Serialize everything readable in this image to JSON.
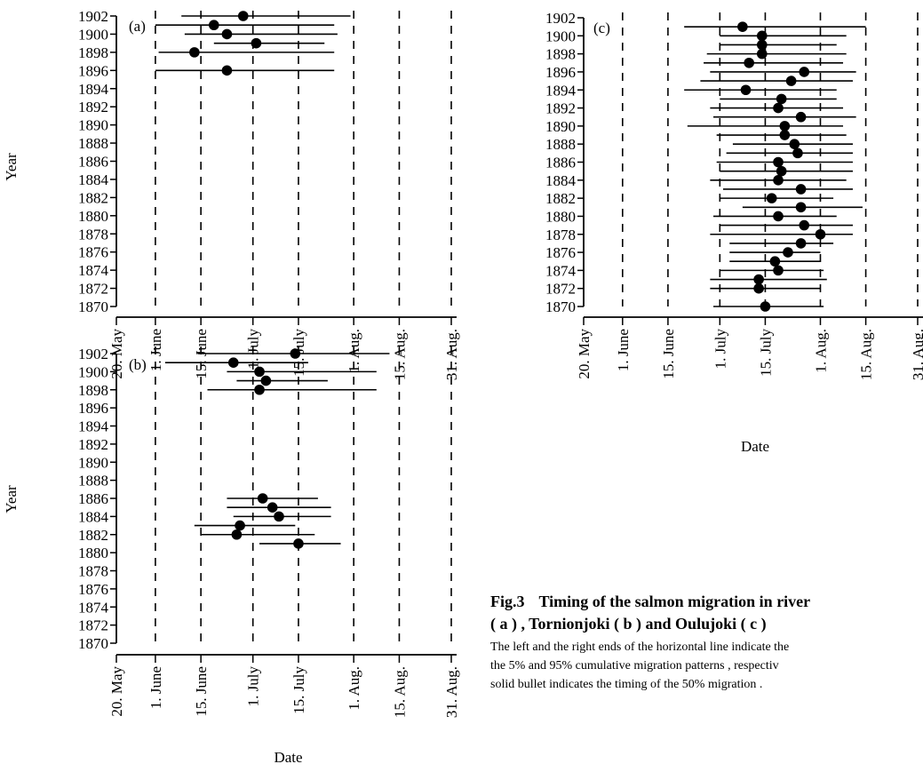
{
  "chart_data": [
    {
      "panel": "(a)",
      "type": "scatter",
      "xlabel": "Date",
      "ylabel": "Year",
      "x_tick_labels": [
        "20. May",
        "1. June",
        "15. June",
        "1. July",
        "15. July",
        "1. Aug.",
        "15. Aug.",
        "31. Aug."
      ],
      "x_ticks": [
        "05-20",
        "06-01",
        "06-15",
        "07-01",
        "07-15",
        "08-01",
        "08-15",
        "08-31"
      ],
      "y_ticks": [
        1902,
        1900,
        1898,
        1896,
        1894,
        1892,
        1890,
        1888,
        1886,
        1884,
        1882,
        1880,
        1878,
        1876,
        1874,
        1872,
        1870
      ],
      "ylim": [
        1870,
        1902
      ],
      "grid": "vertical dashed",
      "points": [
        {
          "year": 1902,
          "start": "06-09",
          "mid": "06-28",
          "end": "07-31"
        },
        {
          "year": 1901,
          "start": "06-01",
          "mid": "06-19",
          "end": "07-26"
        },
        {
          "year": 1900,
          "start": "06-10",
          "mid": "06-23",
          "end": "07-27"
        },
        {
          "year": 1899,
          "start": "06-19",
          "mid": "07-02",
          "end": "07-23"
        },
        {
          "year": 1898,
          "start": "06-02",
          "mid": "06-13",
          "end": "07-26"
        },
        {
          "year": 1896,
          "start": "06-01",
          "mid": "06-23",
          "end": "07-26"
        }
      ]
    },
    {
      "panel": "(b)",
      "type": "scatter",
      "xlabel": "Date",
      "ylabel": "Year",
      "x_tick_labels": [
        "20. May",
        "1. June",
        "15. June",
        "1. July",
        "15. July",
        "1. Aug.",
        "15. Aug.",
        "31. Aug."
      ],
      "x_ticks": [
        "05-20",
        "06-01",
        "06-15",
        "07-01",
        "07-15",
        "08-01",
        "08-15",
        "08-31"
      ],
      "y_ticks": [
        1902,
        1900,
        1898,
        1896,
        1894,
        1892,
        1890,
        1888,
        1886,
        1884,
        1882,
        1880,
        1878,
        1876,
        1874,
        1872,
        1870
      ],
      "ylim": [
        1870,
        1902
      ],
      "grid": "vertical dashed",
      "points": [
        {
          "year": 1902,
          "start": "06-14",
          "mid": "07-14",
          "end": "08-12"
        },
        {
          "year": 1901,
          "start": "06-04",
          "mid": "06-25",
          "end": "07-18"
        },
        {
          "year": 1900,
          "start": "06-23",
          "mid": "07-03",
          "end": "08-08"
        },
        {
          "year": 1899,
          "start": "06-26",
          "mid": "07-05",
          "end": "07-24"
        },
        {
          "year": 1898,
          "start": "06-17",
          "mid": "07-03",
          "end": "08-08"
        },
        {
          "year": 1886,
          "start": "06-23",
          "mid": "07-04",
          "end": "07-21"
        },
        {
          "year": 1885,
          "start": "06-23",
          "mid": "07-07",
          "end": "07-25"
        },
        {
          "year": 1884,
          "start": "06-25",
          "mid": "07-09",
          "end": "07-25"
        },
        {
          "year": 1883,
          "start": "06-13",
          "mid": "06-27",
          "end": "07-14"
        },
        {
          "year": 1882,
          "start": "06-15",
          "mid": "06-26",
          "end": "07-20"
        },
        {
          "year": 1881,
          "start": "07-03",
          "mid": "07-15",
          "end": "07-28"
        }
      ]
    },
    {
      "panel": "(c)",
      "type": "scatter",
      "xlabel": "Date",
      "ylabel": "",
      "x_tick_labels": [
        "20. May",
        "1. June",
        "15. June",
        "1. July",
        "15. July",
        "1. Aug.",
        "15. Aug.",
        "31. Aug."
      ],
      "x_ticks": [
        "05-20",
        "06-01",
        "06-15",
        "07-01",
        "07-15",
        "08-01",
        "08-15",
        "08-31"
      ],
      "y_ticks": [
        1902,
        1900,
        1898,
        1896,
        1894,
        1892,
        1890,
        1888,
        1886,
        1884,
        1882,
        1880,
        1878,
        1876,
        1874,
        1872,
        1870
      ],
      "ylim": [
        1870,
        1902
      ],
      "grid": "vertical dashed",
      "points": [
        {
          "year": 1901,
          "start": "06-20",
          "mid": "07-08",
          "end": "08-15"
        },
        {
          "year": 1900,
          "start": "07-01",
          "mid": "07-14",
          "end": "08-09"
        },
        {
          "year": 1899,
          "start": "07-01",
          "mid": "07-14",
          "end": "08-06"
        },
        {
          "year": 1898,
          "start": "06-27",
          "mid": "07-14",
          "end": "08-09"
        },
        {
          "year": 1897,
          "start": "06-26",
          "mid": "07-10",
          "end": "08-08"
        },
        {
          "year": 1896,
          "start": "06-28",
          "mid": "07-27",
          "end": "08-12"
        },
        {
          "year": 1895,
          "start": "06-25",
          "mid": "07-23",
          "end": "08-11"
        },
        {
          "year": 1894,
          "start": "06-20",
          "mid": "07-09",
          "end": "08-06"
        },
        {
          "year": 1893,
          "start": "07-01",
          "mid": "07-20",
          "end": "08-06"
        },
        {
          "year": 1892,
          "start": "06-28",
          "mid": "07-19",
          "end": "08-08"
        },
        {
          "year": 1891,
          "start": "06-29",
          "mid": "07-26",
          "end": "08-12"
        },
        {
          "year": 1890,
          "start": "06-21",
          "mid": "07-21",
          "end": "08-08"
        },
        {
          "year": 1889,
          "start": "06-30",
          "mid": "07-21",
          "end": "08-09"
        },
        {
          "year": 1888,
          "start": "07-05",
          "mid": "07-24",
          "end": "08-11"
        },
        {
          "year": 1887,
          "start": "07-03",
          "mid": "07-25",
          "end": "08-11"
        },
        {
          "year": 1886,
          "start": "06-30",
          "mid": "07-19",
          "end": "08-11"
        },
        {
          "year": 1885,
          "start": "07-01",
          "mid": "07-20",
          "end": "08-11"
        },
        {
          "year": 1884,
          "start": "06-28",
          "mid": "07-19",
          "end": "08-09"
        },
        {
          "year": 1883,
          "start": "07-02",
          "mid": "07-26",
          "end": "08-11"
        },
        {
          "year": 1882,
          "start": "07-01",
          "mid": "07-17",
          "end": "08-05"
        },
        {
          "year": 1881,
          "start": "07-08",
          "mid": "07-26",
          "end": "08-14"
        },
        {
          "year": 1880,
          "start": "06-29",
          "mid": "07-19",
          "end": "08-06"
        },
        {
          "year": 1879,
          "start": "07-01",
          "mid": "07-27",
          "end": "08-11"
        },
        {
          "year": 1878,
          "start": "06-28",
          "mid": "08-01",
          "end": "08-11"
        },
        {
          "year": 1877,
          "start": "07-04",
          "mid": "07-26",
          "end": "08-05"
        },
        {
          "year": 1876,
          "start": "07-04",
          "mid": "07-22",
          "end": "08-01"
        },
        {
          "year": 1875,
          "start": "07-04",
          "mid": "07-18",
          "end": "08-01"
        },
        {
          "year": 1874,
          "start": "07-01",
          "mid": "07-19",
          "end": "08-02"
        },
        {
          "year": 1873,
          "start": "06-28",
          "mid": "07-13",
          "end": "08-03"
        },
        {
          "year": 1872,
          "start": "06-28",
          "mid": "07-13",
          "end": "08-01"
        },
        {
          "year": 1870,
          "start": "06-29",
          "mid": "07-15",
          "end": "08-02"
        }
      ]
    }
  ],
  "caption": {
    "fig_label": "Fig.3",
    "title_line1": "Timing of the salmon migration in river",
    "title_line2": "( a ) , Tornionjoki ( b ) and Oulujoki ( c )",
    "note_line1": "The left and the right ends of the horizontal line indicate the",
    "note_line2": "the 5%  and 95%  cumulative migration patterns , respectiv",
    "note_line3": "solid bullet indicates the timing of the 50%  migration ."
  }
}
